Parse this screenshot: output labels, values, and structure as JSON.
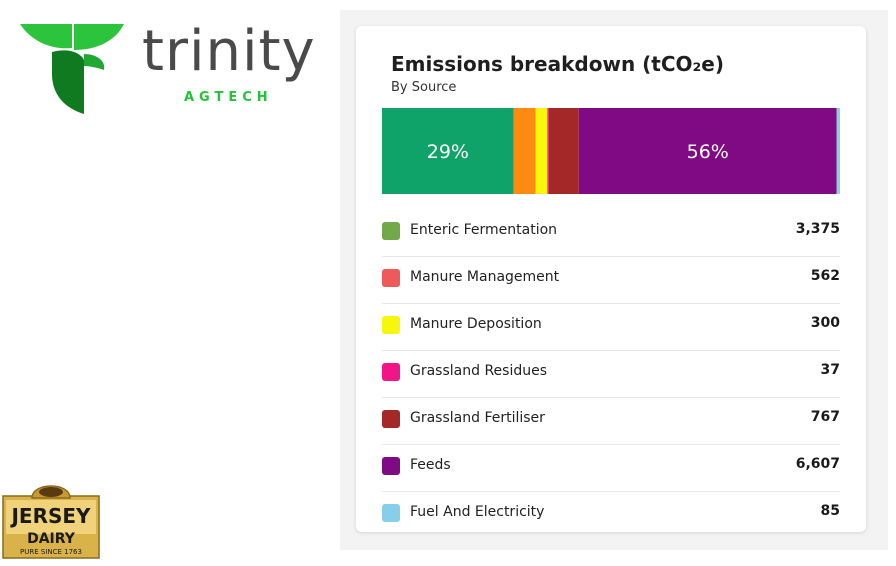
{
  "brand": {
    "name": "trinity",
    "sub": "AGTECH",
    "green_dark": "#0f7a1f",
    "green_light": "#2cc43c"
  },
  "partner": {
    "name_line1": "JERSEY",
    "name_line2": "DAIRY",
    "tagline": "PURE SINCE 1763"
  },
  "chart_data": {
    "type": "bar",
    "orientation": "horizontal-stacked",
    "title": "Emissions breakdown (tCO₂e)",
    "subtitle": "By Source",
    "categories": [
      "Enteric Fermentation",
      "Manure Management",
      "Manure Deposition",
      "Grassland Residues",
      "Grassland Fertiliser",
      "Feeds",
      "Fuel And Electricity"
    ],
    "values": [
      3375,
      562,
      300,
      37,
      767,
      6607,
      85
    ],
    "display_values": [
      "3,375",
      "562",
      "300",
      "37",
      "767",
      "6,607",
      "85"
    ],
    "legend_colors": [
      "#70a84a",
      "#ee5a5a",
      "#f7f70e",
      "#f0168a",
      "#a52828",
      "#800a84",
      "#87ceeb"
    ],
    "bar_colors": [
      "#0fa36a",
      "#ff8a12",
      "#f7f70e",
      "#f0168a",
      "#a52828",
      "#800a84",
      "#87ceeb"
    ],
    "segment_labels": [
      "29%",
      "",
      "",
      "",
      "",
      "56%",
      ""
    ]
  }
}
